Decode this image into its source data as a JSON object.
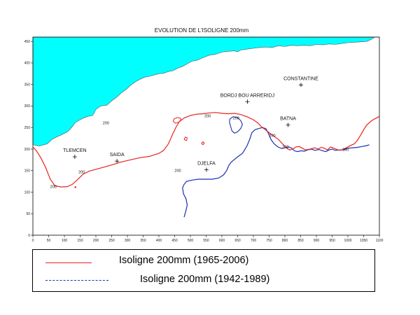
{
  "map": {
    "title": "EVOLUTION DE L'ISOLIGNE 200mm",
    "x_axis": {
      "range": [
        0,
        1100
      ],
      "ticks": [
        0,
        50,
        100,
        150,
        200,
        250,
        300,
        350,
        400,
        450,
        500,
        550,
        600,
        650,
        700,
        750,
        800,
        850,
        900,
        950,
        1000,
        1050,
        1100
      ]
    },
    "y_axis": {
      "range": [
        0,
        460
      ],
      "ticks": [
        0,
        50,
        100,
        150,
        200,
        250,
        300,
        350,
        400,
        450
      ]
    },
    "colors": {
      "sea": "#00ffff",
      "isoline_recent": "#e8231e",
      "isoline_old": "#1a2fb5"
    },
    "isoline_value_label": "200",
    "cities": [
      {
        "name": "TLEMCEN",
        "x": 133,
        "y": 182
      },
      {
        "name": "SAIDA",
        "x": 267,
        "y": 172
      },
      {
        "name": "DJELFA",
        "x": 551,
        "y": 152
      },
      {
        "name": "BORDJ BOU ARRERIDJ",
        "x": 681,
        "y": 310
      },
      {
        "name": "BATNA",
        "x": 810,
        "y": 256
      },
      {
        "name": "CONSTANTINE",
        "x": 851,
        "y": 349
      }
    ]
  },
  "legend": {
    "items": [
      {
        "label": "Isoligne 200mm (1965-2006)",
        "color": "#e8231e",
        "style": "solid"
      },
      {
        "label": "Isoligne 200mm  (1942-1989)",
        "color": "#1a2fb5",
        "style": "dashed"
      }
    ]
  }
}
